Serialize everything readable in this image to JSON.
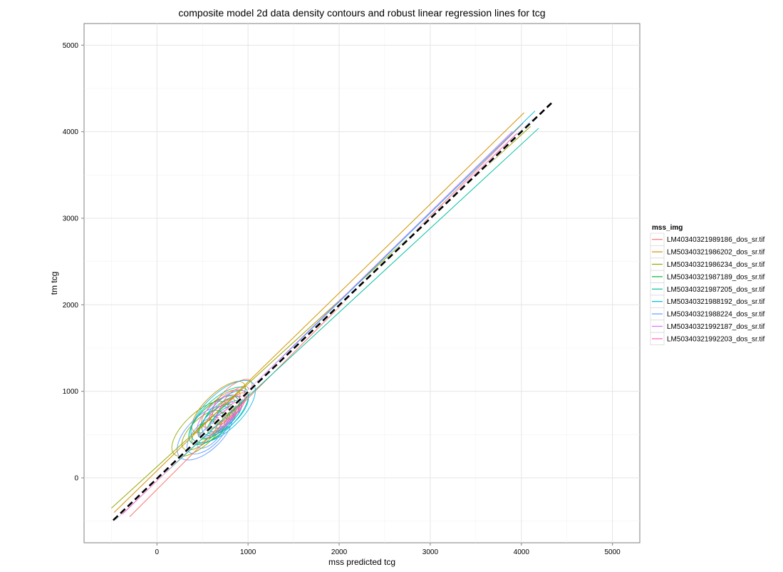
{
  "chart_data": {
    "type": "line",
    "title": "composite model 2d data density contours and robust linear regression lines for tcg",
    "xlabel": "mss predicted tcg",
    "ylabel": "tm tcg",
    "xlim": [
      -800,
      5300
    ],
    "ylim": [
      -750,
      5250
    ],
    "xticks": [
      0,
      1000,
      2000,
      3000,
      4000,
      5000
    ],
    "yticks": [
      0,
      1000,
      2000,
      3000,
      4000,
      5000
    ],
    "grid": true,
    "legend_position": "right",
    "legend_title": "mss_img",
    "reference_line": {
      "style": "dashed",
      "color": "#000000",
      "x": [
        -480,
        4330
      ],
      "y": [
        -490,
        4330
      ]
    },
    "series": [
      {
        "name": "LM40340321989186_dos_sr.tif",
        "color": "#F8766D",
        "x": [
          -300,
          4020
        ],
        "y": [
          -450,
          4100
        ],
        "contour_center": [
          850,
          900
        ],
        "contour_radius": [
          280,
          220
        ]
      },
      {
        "name": "LM50340321986202_dos_sr.tif",
        "color": "#D39200",
        "x": [
          -470,
          4030
        ],
        "y": [
          -400,
          4220
        ],
        "contour_center": [
          700,
          800
        ],
        "contour_radius": [
          380,
          280
        ]
      },
      {
        "name": "LM50340321986234_dos_sr.tif",
        "color": "#93AA00",
        "x": [
          -500,
          4100
        ],
        "y": [
          -350,
          4060
        ],
        "contour_center": [
          500,
          550
        ],
        "contour_radius": [
          400,
          330
        ]
      },
      {
        "name": "LM50340321987189_dos_sr.tif",
        "color": "#00BA38",
        "x": [
          -450,
          4090
        ],
        "y": [
          -460,
          4080
        ],
        "contour_center": [
          650,
          650
        ],
        "contour_radius": [
          350,
          300
        ]
      },
      {
        "name": "LM50340321987205_dos_sr.tif",
        "color": "#00C19F",
        "x": [
          -400,
          4190
        ],
        "y": [
          -420,
          4040
        ],
        "contour_center": [
          700,
          700
        ],
        "contour_radius": [
          420,
          330
        ]
      },
      {
        "name": "LM50340321988192_dos_sr.tif",
        "color": "#00B9E3",
        "x": [
          -450,
          4150
        ],
        "y": [
          -480,
          4240
        ],
        "contour_center": [
          750,
          750
        ],
        "contour_radius": [
          450,
          380
        ]
      },
      {
        "name": "LM50340321988224_dos_sr.tif",
        "color": "#619CFF",
        "x": [
          -400,
          4130
        ],
        "y": [
          -430,
          4150
        ],
        "contour_center": [
          550,
          500
        ],
        "contour_radius": [
          380,
          360
        ]
      },
      {
        "name": "LM50340321992187_dos_sr.tif",
        "color": "#DB72FB",
        "x": [
          -420,
          3900
        ],
        "y": [
          -450,
          4000
        ],
        "contour_center": [
          700,
          700
        ],
        "contour_radius": [
          300,
          260
        ]
      },
      {
        "name": "LM50340321992203_dos_sr.tif",
        "color": "#FF61C3",
        "x": [
          -380,
          3950
        ],
        "y": [
          -420,
          3980
        ],
        "contour_center": [
          800,
          800
        ],
        "contour_radius": [
          250,
          230
        ]
      }
    ]
  }
}
